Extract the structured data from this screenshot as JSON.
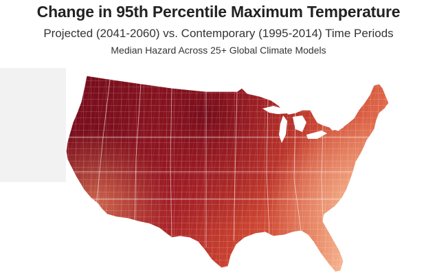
{
  "title": "Change in 95th Percentile Maximum Temperature",
  "subtitle": "Projected (2041-2060) vs. Contemporary (1995-2014) Time Periods",
  "subsubtitle": "Median Hazard Across 25+ Global Climate Models",
  "map": {
    "region": "Contiguous United States",
    "unit": "county",
    "colors": {
      "darkest": "#7a0e1c",
      "dark": "#a31e26",
      "mid": "#c8402f",
      "light": "#e06a4a",
      "lightest": "#f6b08c",
      "border": "#ffffff",
      "panel": "#f2f2f2"
    }
  }
}
